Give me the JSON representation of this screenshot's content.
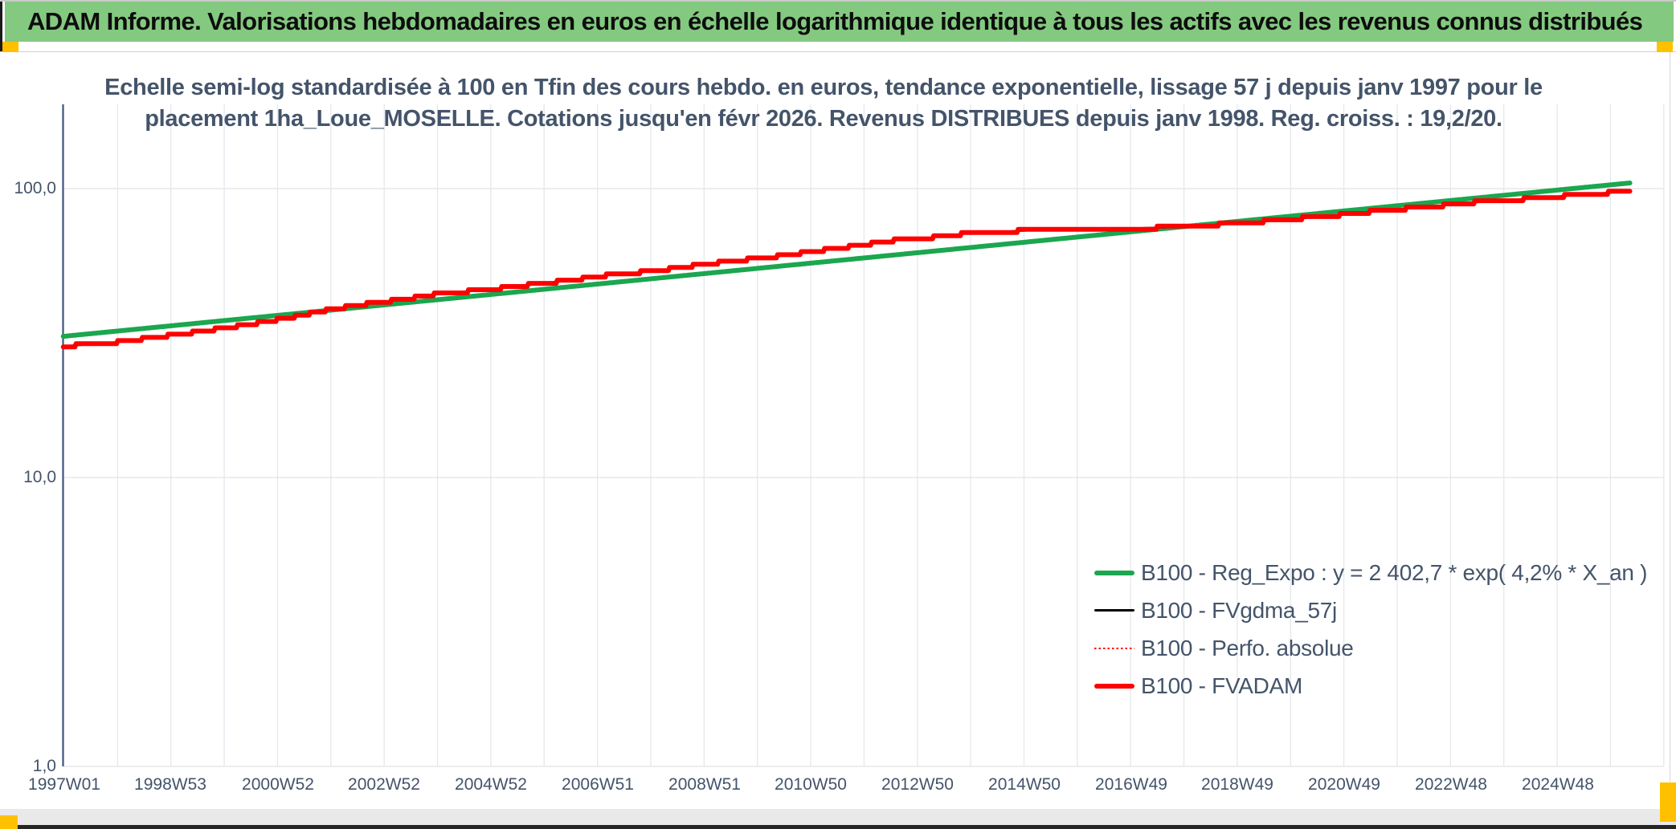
{
  "header": {
    "title": "ADAM Informe. Valorisations hebdomadaires en euros en échelle logarithmique identique à tous les actifs avec les revenus connus distribués",
    "bg_color": "#84C980",
    "marker_color": "#FFC000"
  },
  "chart_data": {
    "type": "line",
    "title_lines": [
      "Echelle semi-log standardisée à 100 en Tfin des cours hebdo. en euros, tendance exponentielle, lissage 57 j depuis janv 1997 pour le",
      "placement 1ha_Loue_MOSELLE. Cotations jusqu'en févr 2026. Revenus DISTRIBUES depuis janv 1998. Reg. croiss. : 19,2/20."
    ],
    "x_axis": {
      "unit": "ISO week (yearWweek)",
      "range_years": [
        1997.02,
        2027.0
      ],
      "gridline_every_years": 1,
      "ticks": [
        {
          "label": "1997W01",
          "year": 1997.02
        },
        {
          "label": "1998W53",
          "year": 1999.01
        },
        {
          "label": "2000W52",
          "year": 2001.01
        },
        {
          "label": "2002W52",
          "year": 2003.0
        },
        {
          "label": "2004W52",
          "year": 2005.0
        },
        {
          "label": "2006W51",
          "year": 2006.99
        },
        {
          "label": "2008W51",
          "year": 2008.99
        },
        {
          "label": "2010W50",
          "year": 2010.98
        },
        {
          "label": "2012W50",
          "year": 2012.98
        },
        {
          "label": "2014W50",
          "year": 2014.97
        },
        {
          "label": "2016W49",
          "year": 2016.97
        },
        {
          "label": "2018W49",
          "year": 2018.96
        },
        {
          "label": "2020W49",
          "year": 2020.96
        },
        {
          "label": "2022W48",
          "year": 2022.95
        },
        {
          "label": "2024W48",
          "year": 2024.95
        }
      ]
    },
    "y_axis": {
      "scale": "log10",
      "tick_labels": [
        "100,0",
        "10,0",
        "1,0"
      ],
      "tick_values": [
        100,
        10,
        1
      ],
      "range": [
        1,
        196
      ],
      "grid": true
    },
    "legend": {
      "position": "inside-bottom-right",
      "entries": [
        {
          "label": "B100 - Reg_Expo : y = 2 402,7 * exp( 4,2% *  X_an )",
          "color": "#1BA64F",
          "style": "solid",
          "thickness": 6
        },
        {
          "label": "B100 - FVgdma_57j",
          "color": "#000000",
          "style": "solid",
          "thickness": 3
        },
        {
          "label": "B100 - Perfo. absolue",
          "color": "#FE0000",
          "style": "dotted",
          "thickness": 2
        },
        {
          "label": "B100 - FVADAM",
          "color": "#FE0000",
          "style": "solid",
          "thickness": 6
        }
      ]
    },
    "fvadam_points": [
      [
        1997.0,
        28.5
      ],
      [
        1997.8,
        29.1
      ],
      [
        1998.5,
        30.2
      ],
      [
        1999.5,
        31.9
      ],
      [
        2000.5,
        33.9
      ],
      [
        2001.3,
        35.9
      ],
      [
        2001.8,
        37.6
      ],
      [
        2002.5,
        39.5
      ],
      [
        2003.5,
        41.7
      ],
      [
        2004.2,
        43.8
      ],
      [
        2004.8,
        44.3
      ],
      [
        2005.5,
        46.0
      ],
      [
        2006.5,
        48.2
      ],
      [
        2007.3,
        50.5
      ],
      [
        2008.0,
        51.7
      ],
      [
        2008.8,
        54.1
      ],
      [
        2009.5,
        56.1
      ],
      [
        2010.3,
        58.1
      ],
      [
        2011.0,
        60.5
      ],
      [
        2011.8,
        63.3
      ],
      [
        2012.5,
        66.1
      ],
      [
        2013.2,
        67.6
      ],
      [
        2014.0,
        70.3
      ],
      [
        2014.8,
        71.3
      ],
      [
        2015.5,
        72.1
      ],
      [
        2016.3,
        72.6
      ],
      [
        2017.0,
        72.9
      ],
      [
        2017.6,
        73.3
      ],
      [
        2018.2,
        74.3
      ],
      [
        2019.0,
        75.8
      ],
      [
        2020.0,
        78.5
      ],
      [
        2021.0,
        81.4
      ],
      [
        2021.8,
        84.6
      ],
      [
        2022.5,
        86.0
      ],
      [
        2023.2,
        89.2
      ],
      [
        2024.0,
        91.0
      ],
      [
        2024.8,
        93.5
      ],
      [
        2025.4,
        95.3
      ],
      [
        2026.3,
        97.9
      ]
    ],
    "series": [
      {
        "name": "B100 - Reg_Expo : y = 2 402,7 * exp( 4,2% *  X_an )",
        "color": "#1BA64F",
        "style": "solid",
        "stroke_width": 6,
        "interp": "log-linear",
        "points": [
          [
            1997.0,
            30.8
          ],
          [
            2026.3,
            104.6
          ]
        ]
      },
      {
        "name": "B100 - FVgdma_57j",
        "color": "#000000",
        "style": "solid",
        "stroke_width": 2.5,
        "points_ref": "fvadam_points",
        "render": "smooth"
      },
      {
        "name": "B100 - Perfo. absolue",
        "color": "#FE0000",
        "style": "dotted",
        "stroke_width": 2,
        "points_ref": "fvadam_points",
        "render": "smooth"
      },
      {
        "name": "B100 - FVADAM",
        "color": "#FE0000",
        "style": "solid",
        "stroke_width": 6,
        "points_ref": "fvadam_points",
        "render": "step-quantized"
      }
    ],
    "colors": {
      "trend_green": "#1BA64F",
      "value_red": "#FE0000",
      "smoothed_black": "#000000",
      "text": "#44546A",
      "axis_line": "#3E5481",
      "gridline": "#E4E8ED"
    }
  }
}
